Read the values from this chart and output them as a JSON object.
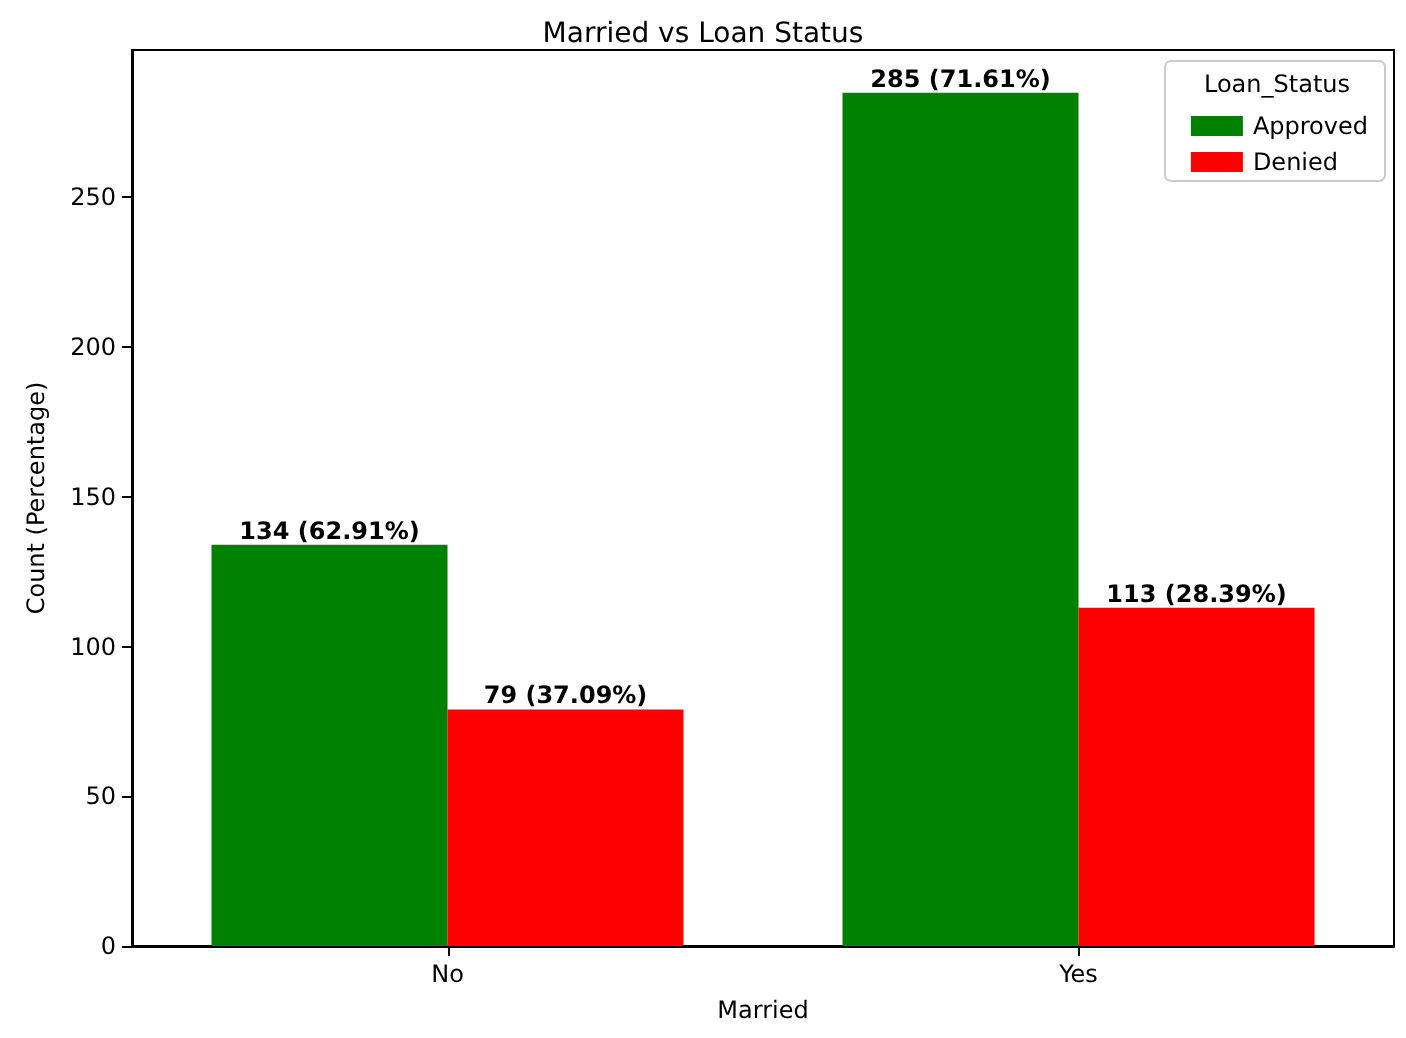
{
  "chart_data": {
    "type": "bar",
    "title": "Married vs Loan Status",
    "xlabel": "Married",
    "ylabel": "Count (Percentage)",
    "legend_title": "Loan_Status",
    "categories": [
      "No",
      "Yes"
    ],
    "series": [
      {
        "name": "Approved",
        "color": "#008000",
        "values": [
          134,
          285
        ],
        "value_labels": [
          "134 (62.91%)",
          "285 (71.61%)"
        ]
      },
      {
        "name": "Denied",
        "color": "#ff0000",
        "values": [
          79,
          113
        ],
        "value_labels": [
          "79 (37.09%)",
          "113 (28.39%)"
        ]
      }
    ],
    "ylim": [
      0,
      299.25
    ],
    "yticks": [
      0,
      50,
      100,
      150,
      200,
      250
    ],
    "grid": false,
    "legend": "top right"
  }
}
